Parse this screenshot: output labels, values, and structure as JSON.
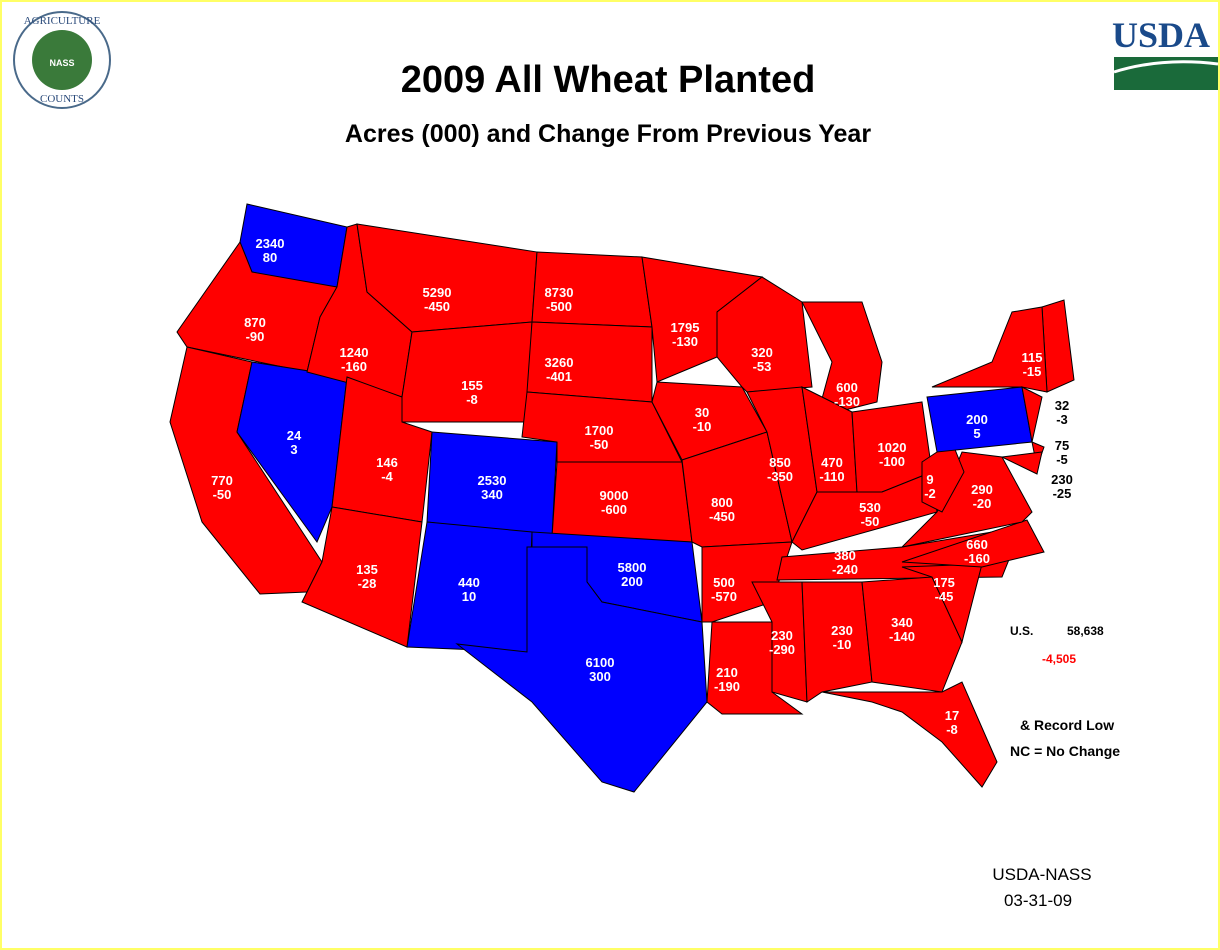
{
  "logos": {
    "left_ring": "AGRICULTURE",
    "left_bottom": "COUNTS",
    "left_center": "NASS",
    "right": "USDA"
  },
  "header": {
    "title": "2009 All Wheat Planted",
    "subtitle": "Acres (000) and Change From Previous Year"
  },
  "states": [
    {
      "acres": 2340,
      "change": 80,
      "color": "#0000ff"
    },
    {
      "acres": 870,
      "change": -90,
      "color": "#ff0000"
    },
    {
      "acres": 770,
      "change": -50,
      "color": "#ff0000"
    },
    {
      "acres": 24,
      "change": 3,
      "color": "#0000ff"
    },
    {
      "acres": 1240,
      "change": -160,
      "color": "#ff0000"
    },
    {
      "acres": 5290,
      "change": -450,
      "color": "#ff0000"
    },
    {
      "acres": 155,
      "change": -8,
      "color": "#ff0000"
    },
    {
      "acres": 146,
      "change": -4,
      "color": "#ff0000"
    },
    {
      "acres": 135,
      "change": -28,
      "color": "#ff0000"
    },
    {
      "acres": 2530,
      "change": 340,
      "color": "#0000ff"
    },
    {
      "acres": 440,
      "change": 10,
      "color": "#0000ff"
    },
    {
      "acres": 8730,
      "change": -500,
      "color": "#ff0000"
    },
    {
      "acres": 3260,
      "change": -401,
      "color": "#ff0000"
    },
    {
      "acres": 1700,
      "change": -50,
      "color": "#ff0000"
    },
    {
      "acres": 9000,
      "change": -600,
      "color": "#ff0000"
    },
    {
      "acres": 5800,
      "change": 200,
      "color": "#0000ff"
    },
    {
      "acres": 6100,
      "change": 300,
      "color": "#0000ff"
    },
    {
      "acres": 1795,
      "change": -130,
      "color": "#ff0000"
    },
    {
      "acres": 30,
      "change": -10,
      "color": "#ff0000"
    },
    {
      "acres": 800,
      "change": -450,
      "color": "#ff0000"
    },
    {
      "acres": 500,
      "change": -570,
      "color": "#ff0000"
    },
    {
      "acres": 210,
      "change": -190,
      "color": "#ff0000"
    },
    {
      "acres": 320,
      "change": -53,
      "color": "#ff0000"
    },
    {
      "acres": 850,
      "change": -350,
      "color": "#ff0000"
    },
    {
      "acres": 600,
      "change": -130,
      "color": "#ff0000"
    },
    {
      "acres": 470,
      "change": -110,
      "color": "#ff0000"
    },
    {
      "acres": 1020,
      "change": -100,
      "color": "#ff0000"
    },
    {
      "acres": 530,
      "change": -50,
      "color": "#ff0000"
    },
    {
      "acres": 380,
      "change": -240,
      "color": "#ff0000"
    },
    {
      "acres": 230,
      "change": -290,
      "color": "#ff0000"
    },
    {
      "acres": 230,
      "change": -10,
      "color": "#ff0000"
    },
    {
      "acres": 340,
      "change": -140,
      "color": "#ff0000"
    },
    {
      "acres": 17,
      "change": -8,
      "color": "#ff0000"
    },
    {
      "acres": 175,
      "change": -45,
      "color": "#ff0000"
    },
    {
      "acres": 660,
      "change": -160,
      "color": "#ff0000"
    },
    {
      "acres": 290,
      "change": -20,
      "color": "#ff0000"
    },
    {
      "acres": 9,
      "change": -2,
      "color": "#ff0000"
    },
    {
      "acres": 200,
      "change": 5,
      "color": "#0000ff"
    },
    {
      "acres": 115,
      "change": -15,
      "color": "#ff0000"
    },
    {
      "acres": 32,
      "change": -3,
      "color": "#ff0000"
    },
    {
      "acres": 75,
      "change": -5,
      "color": "#ff0000"
    },
    {
      "acres": 230,
      "change": -25,
      "color": "#ff0000"
    }
  ],
  "us_total": {
    "label": "U.S.",
    "acres": "58,638",
    "change": "-4,505"
  },
  "legend": {
    "record_low": "& Record Low",
    "no_change": "NC = No Change"
  },
  "footer": {
    "source": "USDA-NASS",
    "date": "03-31-09"
  }
}
